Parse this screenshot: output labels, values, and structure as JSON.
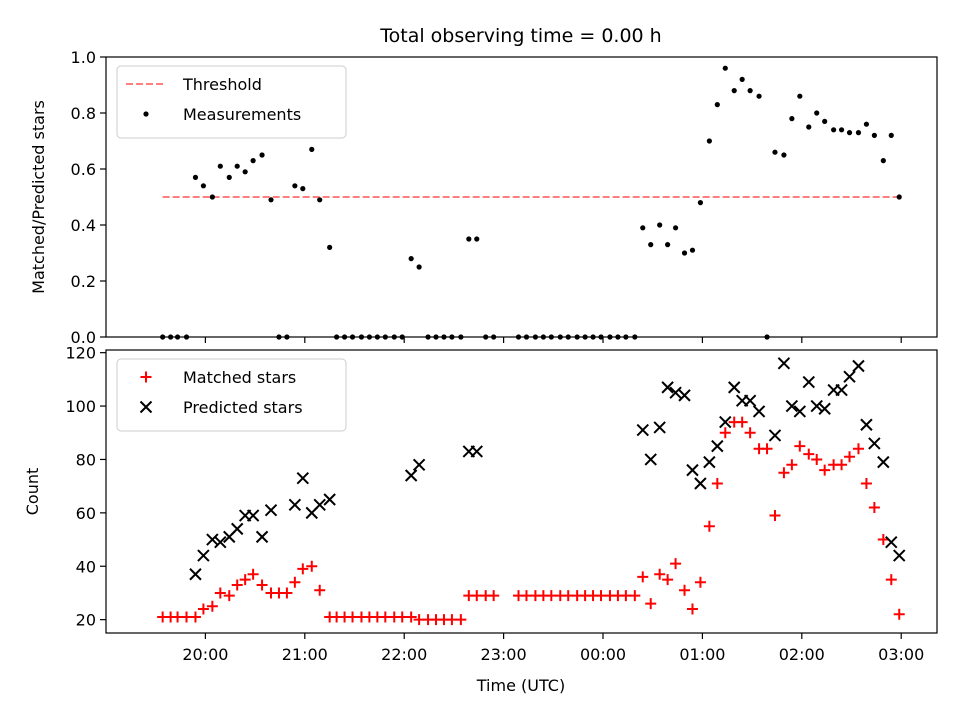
{
  "figure": {
    "title": "Total observing time = 0.00 h",
    "xlabel": "Time (UTC)"
  },
  "chart_data": [
    {
      "type": "scatter",
      "ylabel": "Matched/Predicted stars",
      "ylim": [
        0,
        1.0
      ],
      "yticks": [
        "0.0",
        "0.2",
        "0.4",
        "0.6",
        "0.8",
        "1.0"
      ],
      "xlim": [
        19.0,
        27.36
      ],
      "legend_position": "top-left",
      "threshold": {
        "name": "Threshold",
        "value": 0.5,
        "x_start": 19.57,
        "x_end": 27.0,
        "color": "#ff0000"
      },
      "series": [
        {
          "name": "Measurements",
          "color": "#000000",
          "points": [
            [
              19.57,
              0
            ],
            [
              19.65,
              0
            ],
            [
              19.72,
              0
            ],
            [
              19.81,
              0
            ],
            [
              19.9,
              0.57
            ],
            [
              19.98,
              0.54
            ],
            [
              20.07,
              0.5
            ],
            [
              20.15,
              0.61
            ],
            [
              20.24,
              0.57
            ],
            [
              20.32,
              0.61
            ],
            [
              20.4,
              0.59
            ],
            [
              20.48,
              0.63
            ],
            [
              20.57,
              0.65
            ],
            [
              20.66,
              0.49
            ],
            [
              20.74,
              0
            ],
            [
              20.82,
              0
            ],
            [
              20.9,
              0.54
            ],
            [
              20.98,
              0.53
            ],
            [
              21.07,
              0.67
            ],
            [
              21.15,
              0.49
            ],
            [
              21.25,
              0.32
            ],
            [
              21.32,
              0
            ],
            [
              21.4,
              0
            ],
            [
              21.48,
              0
            ],
            [
              21.57,
              0
            ],
            [
              21.65,
              0
            ],
            [
              21.73,
              0
            ],
            [
              21.81,
              0
            ],
            [
              21.9,
              0
            ],
            [
              21.98,
              0
            ],
            [
              22.07,
              0.28
            ],
            [
              22.15,
              0.25
            ],
            [
              22.24,
              0
            ],
            [
              22.32,
              0
            ],
            [
              22.4,
              0
            ],
            [
              22.48,
              0
            ],
            [
              22.57,
              0
            ],
            [
              22.65,
              0.35
            ],
            [
              22.73,
              0.35
            ],
            [
              22.82,
              0
            ],
            [
              22.9,
              0
            ],
            [
              23.15,
              0
            ],
            [
              23.23,
              0
            ],
            [
              23.32,
              0
            ],
            [
              23.4,
              0
            ],
            [
              23.48,
              0
            ],
            [
              23.57,
              0
            ],
            [
              23.65,
              0
            ],
            [
              23.74,
              0
            ],
            [
              23.82,
              0
            ],
            [
              23.9,
              0
            ],
            [
              23.98,
              0
            ],
            [
              24.07,
              0
            ],
            [
              24.15,
              0
            ],
            [
              24.23,
              0
            ],
            [
              24.32,
              0
            ],
            [
              24.4,
              0.39
            ],
            [
              24.48,
              0.33
            ],
            [
              24.57,
              0.4
            ],
            [
              24.65,
              0.33
            ],
            [
              24.73,
              0.39
            ],
            [
              24.82,
              0.3
            ],
            [
              24.9,
              0.31
            ],
            [
              24.98,
              0.48
            ],
            [
              25.07,
              0.7
            ],
            [
              25.15,
              0.83
            ],
            [
              25.23,
              0.96
            ],
            [
              25.32,
              0.88
            ],
            [
              25.4,
              0.92
            ],
            [
              25.48,
              0.88
            ],
            [
              25.57,
              0.86
            ],
            [
              25.65,
              0
            ],
            [
              25.73,
              0.66
            ],
            [
              25.82,
              0.65
            ],
            [
              25.9,
              0.78
            ],
            [
              25.98,
              0.86
            ],
            [
              26.07,
              0.75
            ],
            [
              26.15,
              0.8
            ],
            [
              26.23,
              0.77
            ],
            [
              26.32,
              0.74
            ],
            [
              26.4,
              0.74
            ],
            [
              26.48,
              0.73
            ],
            [
              26.57,
              0.73
            ],
            [
              26.65,
              0.76
            ],
            [
              26.73,
              0.72
            ],
            [
              26.82,
              0.63
            ],
            [
              26.9,
              0.72
            ],
            [
              26.98,
              0.5
            ]
          ]
        }
      ]
    },
    {
      "type": "scatter",
      "ylabel": "Count",
      "ylim": [
        15,
        121
      ],
      "yticks": [
        "20",
        "40",
        "60",
        "80",
        "100",
        "120"
      ],
      "xlim": [
        19.0,
        27.36
      ],
      "xticks": [
        {
          "value": 20,
          "label": "20:00"
        },
        {
          "value": 21,
          "label": "21:00"
        },
        {
          "value": 22,
          "label": "22:00"
        },
        {
          "value": 23,
          "label": "23:00"
        },
        {
          "value": 24,
          "label": "00:00"
        },
        {
          "value": 25,
          "label": "01:00"
        },
        {
          "value": 26,
          "label": "02:00"
        },
        {
          "value": 27,
          "label": "03:00"
        }
      ],
      "legend_position": "top-left",
      "series": [
        {
          "name": "Matched stars",
          "color": "#ff0000",
          "marker": "plus",
          "points": [
            [
              19.57,
              21
            ],
            [
              19.65,
              21
            ],
            [
              19.72,
              21
            ],
            [
              19.81,
              21
            ],
            [
              19.9,
              21
            ],
            [
              19.98,
              24
            ],
            [
              20.07,
              25
            ],
            [
              20.15,
              30
            ],
            [
              20.24,
              29
            ],
            [
              20.32,
              33
            ],
            [
              20.4,
              35
            ],
            [
              20.48,
              37
            ],
            [
              20.57,
              33
            ],
            [
              20.66,
              30
            ],
            [
              20.74,
              30
            ],
            [
              20.82,
              30
            ],
            [
              20.9,
              34
            ],
            [
              20.98,
              39
            ],
            [
              21.07,
              40
            ],
            [
              21.15,
              31
            ],
            [
              21.25,
              21
            ],
            [
              21.32,
              21
            ],
            [
              21.4,
              21
            ],
            [
              21.48,
              21
            ],
            [
              21.57,
              21
            ],
            [
              21.65,
              21
            ],
            [
              21.73,
              21
            ],
            [
              21.81,
              21
            ],
            [
              21.9,
              21
            ],
            [
              21.98,
              21
            ],
            [
              22.07,
              21
            ],
            [
              22.15,
              20
            ],
            [
              22.24,
              20
            ],
            [
              22.32,
              20
            ],
            [
              22.4,
              20
            ],
            [
              22.48,
              20
            ],
            [
              22.57,
              20
            ],
            [
              22.65,
              29
            ],
            [
              22.73,
              29
            ],
            [
              22.82,
              29
            ],
            [
              22.9,
              29
            ],
            [
              23.15,
              29
            ],
            [
              23.23,
              29
            ],
            [
              23.32,
              29
            ],
            [
              23.4,
              29
            ],
            [
              23.48,
              29
            ],
            [
              23.57,
              29
            ],
            [
              23.65,
              29
            ],
            [
              23.74,
              29
            ],
            [
              23.82,
              29
            ],
            [
              23.9,
              29
            ],
            [
              23.98,
              29
            ],
            [
              24.07,
              29
            ],
            [
              24.15,
              29
            ],
            [
              24.23,
              29
            ],
            [
              24.32,
              29
            ],
            [
              24.4,
              36
            ],
            [
              24.48,
              26
            ],
            [
              24.57,
              37
            ],
            [
              24.65,
              35
            ],
            [
              24.73,
              41
            ],
            [
              24.82,
              31
            ],
            [
              24.9,
              24
            ],
            [
              24.98,
              34
            ],
            [
              25.07,
              55
            ],
            [
              25.15,
              71
            ],
            [
              25.23,
              90
            ],
            [
              25.32,
              94
            ],
            [
              25.4,
              94
            ],
            [
              25.48,
              90
            ],
            [
              25.57,
              84
            ],
            [
              25.65,
              84
            ],
            [
              25.73,
              59
            ],
            [
              25.82,
              75
            ],
            [
              25.9,
              78
            ],
            [
              25.98,
              85
            ],
            [
              26.07,
              82
            ],
            [
              26.15,
              80
            ],
            [
              26.23,
              76
            ],
            [
              26.32,
              78
            ],
            [
              26.4,
              78
            ],
            [
              26.48,
              81
            ],
            [
              26.57,
              84
            ],
            [
              26.65,
              71
            ],
            [
              26.73,
              62
            ],
            [
              26.82,
              50
            ],
            [
              26.9,
              35
            ],
            [
              26.98,
              22
            ]
          ]
        },
        {
          "name": "Predicted stars",
          "color": "#000000",
          "marker": "x",
          "points": [
            [
              19.9,
              37
            ],
            [
              19.98,
              44
            ],
            [
              20.07,
              50
            ],
            [
              20.15,
              49
            ],
            [
              20.24,
              51
            ],
            [
              20.32,
              54
            ],
            [
              20.4,
              59
            ],
            [
              20.48,
              59
            ],
            [
              20.57,
              51
            ],
            [
              20.66,
              61
            ],
            [
              20.9,
              63
            ],
            [
              20.98,
              73
            ],
            [
              21.07,
              60
            ],
            [
              21.15,
              63
            ],
            [
              21.25,
              65
            ],
            [
              22.07,
              74
            ],
            [
              22.15,
              78
            ],
            [
              22.65,
              83
            ],
            [
              22.73,
              83
            ],
            [
              24.4,
              91
            ],
            [
              24.48,
              80
            ],
            [
              24.57,
              92
            ],
            [
              24.65,
              107
            ],
            [
              24.73,
              105
            ],
            [
              24.82,
              104
            ],
            [
              24.9,
              76
            ],
            [
              24.98,
              71
            ],
            [
              25.07,
              79
            ],
            [
              25.15,
              85
            ],
            [
              25.23,
              94
            ],
            [
              25.32,
              107
            ],
            [
              25.4,
              102
            ],
            [
              25.48,
              102
            ],
            [
              25.57,
              98
            ],
            [
              25.73,
              89
            ],
            [
              25.82,
              116
            ],
            [
              25.9,
              100
            ],
            [
              25.98,
              98
            ],
            [
              26.07,
              109
            ],
            [
              26.15,
              100
            ],
            [
              26.23,
              99
            ],
            [
              26.32,
              106
            ],
            [
              26.4,
              106
            ],
            [
              26.48,
              111
            ],
            [
              26.57,
              115
            ],
            [
              26.65,
              93
            ],
            [
              26.73,
              86
            ],
            [
              26.82,
              79
            ],
            [
              26.9,
              49
            ],
            [
              26.98,
              44
            ]
          ]
        }
      ]
    }
  ]
}
